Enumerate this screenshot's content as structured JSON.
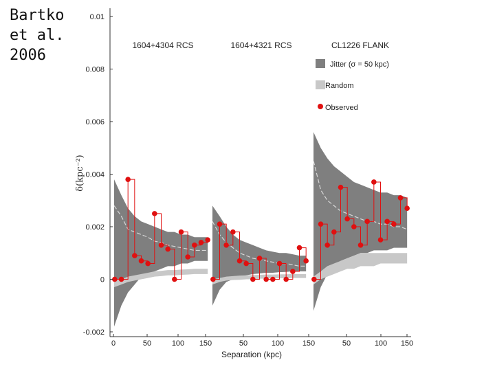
{
  "credit": {
    "text": "Bartko\net al.\n2006"
  },
  "chart_data": {
    "type": "scatter",
    "xlabel": "Separation (kpc)",
    "ylabel": "δ(kpc⁻²)",
    "ylim": [
      -0.002,
      0.01
    ],
    "y_ticks": [
      "-0.002",
      "0",
      "0.002",
      "0.004",
      "0.006",
      "0.008",
      "0.01"
    ],
    "y_tick_values": [
      -0.002,
      0,
      0.002,
      0.004,
      0.006,
      0.008,
      0.01
    ],
    "x_tick_labels": [
      "0",
      "50",
      "100",
      "150",
      "50",
      "100",
      "150",
      "50",
      "100",
      "150"
    ],
    "legend": {
      "jitter": "Jitter (σ = 50 kpc)",
      "random": "Random",
      "observed": "Observed"
    },
    "colors": {
      "jitter": "#7f7f7f",
      "random": "#c8c8c8",
      "observed": "#e01010",
      "jitter_mean": "#d8d8d8"
    },
    "panels": [
      {
        "title": "1604+4304 RCS",
        "xlim": [
          0,
          150
        ],
        "observed": [
          [
            5,
            0
          ],
          [
            15,
            0
          ],
          [
            25,
            0.0038
          ],
          [
            35,
            0.0009
          ],
          [
            45,
            0.0007
          ],
          [
            55,
            0.0006
          ],
          [
            65,
            0.0025
          ],
          [
            75,
            0.0013
          ],
          [
            85,
            0.00115
          ],
          [
            95,
            0
          ],
          [
            105,
            0.0018
          ],
          [
            115,
            0.00085
          ],
          [
            125,
            0.0013
          ],
          [
            135,
            0.0014
          ],
          [
            145,
            0.0015
          ]
        ],
        "jitter_x": [
          5,
          15,
          25,
          35,
          45,
          55,
          65,
          75,
          85,
          95,
          105,
          115,
          125,
          135,
          145
        ],
        "jitter_upper": [
          0.0038,
          0.0032,
          0.0027,
          0.0024,
          0.0022,
          0.0021,
          0.002,
          0.0019,
          0.0018,
          0.0018,
          0.0017,
          0.0017,
          0.0016,
          0.0016,
          0.0016
        ],
        "jitter_mean": [
          0.0028,
          0.0024,
          0.0019,
          0.0018,
          0.0017,
          0.0016,
          0.00145,
          0.0014,
          0.0013,
          0.00125,
          0.0012,
          0.00115,
          0.0011,
          0.0011,
          0.0011
        ],
        "jitter_lower": [
          -0.0018,
          -0.001,
          -0.0005,
          -0.0002,
          0.0001,
          0.0002,
          0.0003,
          0.0004,
          0.0005,
          0.0005,
          0.0006,
          0.0006,
          0.0007,
          0.0007,
          0.0007
        ],
        "random_upper": [
          0.0,
          0.0,
          0.0001,
          0.00015,
          0.0002,
          0.00025,
          0.0003,
          0.00032,
          0.00035,
          0.00035,
          0.00037,
          0.00038,
          0.0004,
          0.0004,
          0.0004
        ],
        "random_lower": [
          -0.0003,
          -0.0002,
          -0.0001,
          -5e-05,
          0.0,
          5e-05,
          0.0001,
          0.00012,
          0.00015,
          0.00015,
          0.00017,
          0.00018,
          0.0002,
          0.0002,
          0.0002
        ]
      },
      {
        "title": "1604+4321 RCS",
        "xlim": [
          0,
          150
        ],
        "observed": [
          [
            5,
            0
          ],
          [
            15,
            0.0021
          ],
          [
            25,
            0.0013
          ],
          [
            35,
            0.0018
          ],
          [
            45,
            0.0007
          ],
          [
            55,
            0.0006
          ],
          [
            65,
            0
          ],
          [
            75,
            0.0008
          ],
          [
            85,
            0
          ],
          [
            95,
            0
          ],
          [
            105,
            0.0006
          ],
          [
            115,
            0
          ],
          [
            125,
            0.0003
          ],
          [
            135,
            0.0012
          ],
          [
            145,
            0.0007
          ]
        ],
        "jitter_x": [
          5,
          15,
          25,
          35,
          45,
          55,
          65,
          75,
          85,
          95,
          105,
          115,
          125,
          135,
          145
        ],
        "jitter_upper": [
          0.0028,
          0.0024,
          0.002,
          0.0017,
          0.0015,
          0.0014,
          0.0013,
          0.0012,
          0.0011,
          0.00105,
          0.001,
          0.001,
          0.00095,
          0.0009,
          0.0009
        ],
        "jitter_mean": [
          0.0022,
          0.0017,
          0.0014,
          0.0012,
          0.001,
          0.0009,
          0.0008,
          0.00075,
          0.0007,
          0.00065,
          0.0006,
          0.0006,
          0.00055,
          0.0005,
          0.0005
        ],
        "jitter_lower": [
          -0.001,
          -0.0004,
          -0.0001,
          0.0,
          0.0001,
          0.00015,
          0.0002,
          0.00022,
          0.00025,
          0.00025,
          0.00027,
          0.00028,
          0.0003,
          0.0003,
          0.0003
        ],
        "random_upper": [
          0.0,
          5e-05,
          0.0001,
          0.00012,
          0.00014,
          0.00015,
          0.00016,
          0.00017,
          0.00018,
          0.00018,
          0.00019,
          0.00019,
          0.0002,
          0.0002,
          0.0002
        ],
        "random_lower": [
          -0.0002,
          -0.0001,
          -5e-05,
          -3e-05,
          -2e-05,
          0.0,
          0.0,
          2e-05,
          3e-05,
          3e-05,
          4e-05,
          4e-05,
          5e-05,
          5e-05,
          5e-05
        ]
      },
      {
        "title": "CL1226 FLANK",
        "xlim": [
          0,
          150
        ],
        "observed": [
          [
            5,
            0
          ],
          [
            15,
            0.0021
          ],
          [
            25,
            0.0013
          ],
          [
            35,
            0.0018
          ],
          [
            45,
            0.0035
          ],
          [
            55,
            0.0023
          ],
          [
            65,
            0.002
          ],
          [
            75,
            0.0013
          ],
          [
            85,
            0.0022
          ],
          [
            95,
            0.0037
          ],
          [
            105,
            0.0015
          ],
          [
            115,
            0.0022
          ],
          [
            125,
            0.0021
          ],
          [
            135,
            0.0031
          ],
          [
            145,
            0.0027
          ]
        ],
        "jitter_x": [
          5,
          15,
          25,
          35,
          45,
          55,
          65,
          75,
          85,
          95,
          105,
          115,
          125,
          135,
          145
        ],
        "jitter_upper": [
          0.0056,
          0.005,
          0.0046,
          0.0043,
          0.0041,
          0.0039,
          0.0037,
          0.0036,
          0.0035,
          0.0034,
          0.0033,
          0.0033,
          0.0032,
          0.0032,
          0.0031
        ],
        "jitter_mean": [
          0.0045,
          0.0034,
          0.003,
          0.0028,
          0.0026,
          0.0025,
          0.0024,
          0.0023,
          0.0022,
          0.0022,
          0.0021,
          0.0021,
          0.002,
          0.002,
          0.0019
        ],
        "jitter_lower": [
          -0.0012,
          -0.0003,
          0.0002,
          0.0005,
          0.0007,
          0.0008,
          0.0009,
          0.001,
          0.001,
          0.0011,
          0.0011,
          0.0011,
          0.0012,
          0.0012,
          0.0012
        ],
        "random_upper": [
          0.0001,
          0.0003,
          0.0005,
          0.0006,
          0.0007,
          0.0008,
          0.0009,
          0.001,
          0.001,
          0.001,
          0.001,
          0.001,
          0.001,
          0.001,
          0.001
        ],
        "random_lower": [
          -0.0002,
          0.0,
          0.0001,
          0.0002,
          0.0003,
          0.0004,
          0.0004,
          0.0005,
          0.0005,
          0.0005,
          0.0006,
          0.0006,
          0.0006,
          0.0006,
          0.0006
        ]
      }
    ]
  }
}
